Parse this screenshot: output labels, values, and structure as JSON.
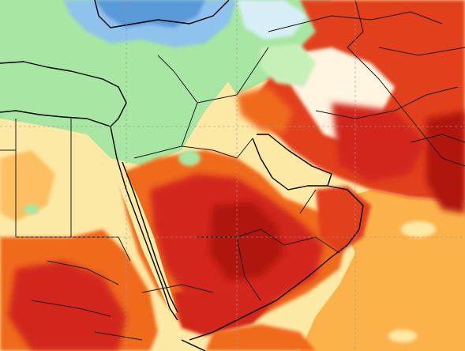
{
  "map": {
    "colors": {
      "cold_blue": "#5a9ad8",
      "light_blue": "#a9d3f2",
      "pale_cyan": "#d7eef7",
      "green": "#a8e6a3",
      "light_green": "#c7f0b8",
      "pale_yellow": "#fde9a6",
      "yellow_orange": "#fcc064",
      "orange": "#f79a2e",
      "dark_orange": "#f06a1a",
      "red_orange": "#e2401a",
      "red": "#d2281a",
      "dark_red": "#b01810",
      "white_hot": "#fff4e0"
    }
  }
}
